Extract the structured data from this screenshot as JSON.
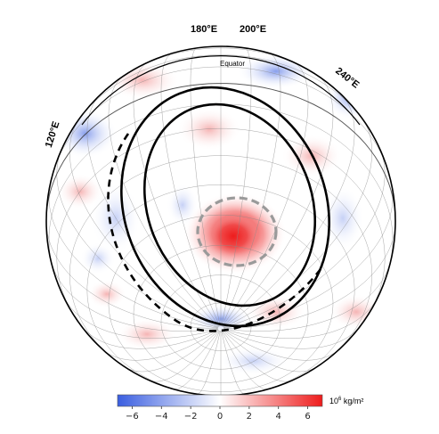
{
  "map": {
    "projection": "orthographic",
    "meridian_labels": [
      "180°E",
      "200°E",
      "240°E",
      "120°E"
    ],
    "equator_label": "Equator",
    "field": {
      "positive_color": "#ee1c1c",
      "negative_color": "#3a5ee0",
      "neutral_color": "#ffffff"
    },
    "features": [
      {
        "name": "outer-ring",
        "style": "solid",
        "color": "#000000"
      },
      {
        "name": "inner-ring",
        "style": "solid",
        "color": "#000000"
      },
      {
        "name": "outer-arc",
        "style": "dashed",
        "color": "#000000"
      },
      {
        "name": "anomaly-outline",
        "style": "dashed",
        "color": "#999999"
      }
    ]
  },
  "colorbar": {
    "unit_base": "10",
    "unit_exp": "6",
    "unit_rest": " kg/m²",
    "range": [
      -7,
      7
    ],
    "ticks": [
      "−6",
      "−4",
      "−2",
      "0",
      "2",
      "4",
      "6"
    ],
    "colors": [
      "#3a5ee0",
      "#ffffff",
      "#ee1c1c"
    ]
  }
}
